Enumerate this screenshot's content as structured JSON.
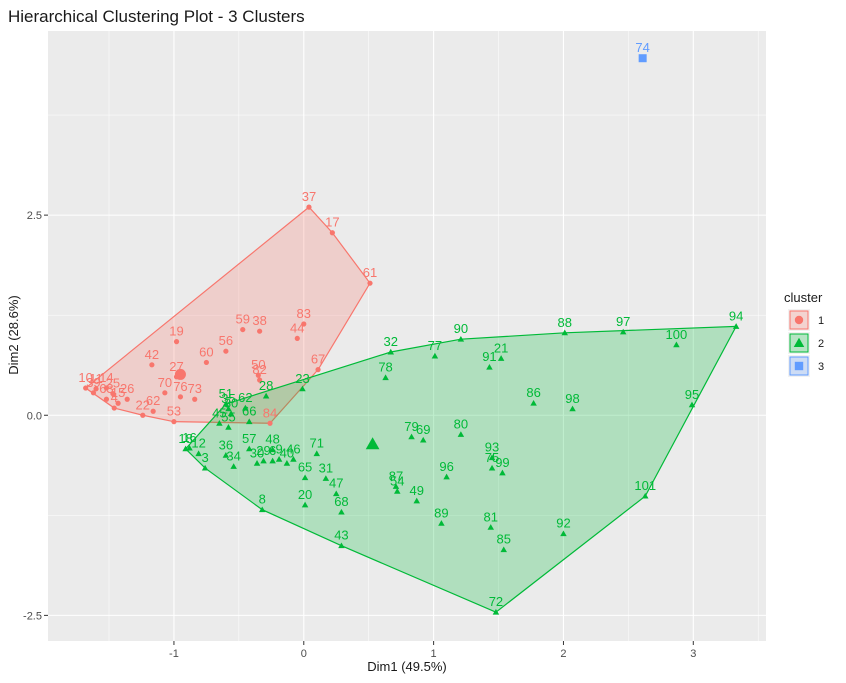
{
  "chart_data": {
    "type": "scatter",
    "title": "Hierarchical Clustering Plot - 3 Clusters",
    "xlabel": "Dim1 (49.5%)",
    "ylabel": "Dim2 (28.6%)",
    "xlim": [
      -1.97,
      3.56
    ],
    "ylim": [
      -2.82,
      4.8
    ],
    "xticks": [
      -1,
      0,
      1,
      2,
      3
    ],
    "xtick_labels": [
      "-1",
      "0",
      "1",
      "2",
      "3"
    ],
    "yticks": [
      -2.5,
      0.0,
      2.5
    ],
    "ytick_labels": [
      "-2.5",
      "0.0",
      "2.5"
    ],
    "grid": true,
    "legend_position": "right",
    "legend_title": "cluster",
    "series": [
      {
        "name": "1",
        "color": "#F8766D",
        "shape": "circle",
        "hull": true,
        "centroid": {
          "x": -0.95,
          "y": 0.51
        },
        "points": [
          {
            "label": "37",
            "x": 0.04,
            "y": 2.6
          },
          {
            "label": "17",
            "x": 0.22,
            "y": 2.28
          },
          {
            "label": "61",
            "x": 0.51,
            "y": 1.65
          },
          {
            "label": "83",
            "x": 0.0,
            "y": 1.14
          },
          {
            "label": "44",
            "x": -0.05,
            "y": 0.96
          },
          {
            "label": "59",
            "x": -0.47,
            "y": 1.07
          },
          {
            "label": "38",
            "x": -0.34,
            "y": 1.05
          },
          {
            "label": "19",
            "x": -0.98,
            "y": 0.92
          },
          {
            "label": "56",
            "x": -0.6,
            "y": 0.8
          },
          {
            "label": "60",
            "x": -0.75,
            "y": 0.66
          },
          {
            "label": "42",
            "x": -1.17,
            "y": 0.63
          },
          {
            "label": "50",
            "x": -0.35,
            "y": 0.5
          },
          {
            "label": "67",
            "x": 0.11,
            "y": 0.57
          },
          {
            "label": "27",
            "x": -0.98,
            "y": 0.48
          },
          {
            "label": "82",
            "x": -0.34,
            "y": 0.44
          },
          {
            "label": "70",
            "x": -1.07,
            "y": 0.28
          },
          {
            "label": "76",
            "x": -0.95,
            "y": 0.23
          },
          {
            "label": "73",
            "x": -0.84,
            "y": 0.2
          },
          {
            "label": "26",
            "x": -1.36,
            "y": 0.2
          },
          {
            "label": "62",
            "x": -1.16,
            "y": 0.05
          },
          {
            "label": "22",
            "x": -1.24,
            "y": 0.0
          },
          {
            "label": "53",
            "x": -1.0,
            "y": -0.08
          },
          {
            "label": "84",
            "x": -0.26,
            "y": -0.1
          },
          {
            "label": "10",
            "x": -1.68,
            "y": 0.34
          },
          {
            "label": "11",
            "x": -1.6,
            "y": 0.33
          },
          {
            "label": "14",
            "x": -1.52,
            "y": 0.34
          },
          {
            "label": "39",
            "x": -1.62,
            "y": 0.28
          },
          {
            "label": "25",
            "x": -1.47,
            "y": 0.27
          },
          {
            "label": "63",
            "x": -1.52,
            "y": 0.2
          },
          {
            "label": "15",
            "x": -1.43,
            "y": 0.15
          },
          {
            "label": "4",
            "x": -1.46,
            "y": 0.09
          }
        ]
      },
      {
        "name": "2",
        "color": "#00BA38",
        "shape": "triangle",
        "hull": true,
        "centroid": {
          "x": 0.53,
          "y": -0.36
        },
        "points": [
          {
            "label": "94",
            "x": 3.33,
            "y": 1.11
          },
          {
            "label": "97",
            "x": 2.46,
            "y": 1.04
          },
          {
            "label": "88",
            "x": 2.01,
            "y": 1.03
          },
          {
            "label": "100",
            "x": 2.87,
            "y": 0.88
          },
          {
            "label": "90",
            "x": 1.21,
            "y": 0.95
          },
          {
            "label": "32",
            "x": 0.67,
            "y": 0.79
          },
          {
            "label": "77",
            "x": 1.01,
            "y": 0.74
          },
          {
            "label": "21",
            "x": 1.52,
            "y": 0.71
          },
          {
            "label": "91",
            "x": 1.43,
            "y": 0.6
          },
          {
            "label": "78",
            "x": 0.63,
            "y": 0.47
          },
          {
            "label": "86",
            "x": 1.77,
            "y": 0.15
          },
          {
            "label": "98",
            "x": 2.07,
            "y": 0.08
          },
          {
            "label": "95",
            "x": 2.99,
            "y": 0.13
          },
          {
            "label": "23",
            "x": -0.01,
            "y": 0.33
          },
          {
            "label": "28",
            "x": -0.29,
            "y": 0.24
          },
          {
            "label": "62",
            "x": -0.45,
            "y": 0.09
          },
          {
            "label": "51",
            "x": -0.6,
            "y": 0.14
          },
          {
            "label": "35",
            "x": -0.58,
            "y": 0.08
          },
          {
            "label": "30",
            "x": -0.56,
            "y": 0.02
          },
          {
            "label": "66",
            "x": -0.42,
            "y": -0.08
          },
          {
            "label": "45",
            "x": -0.65,
            "y": -0.1
          },
          {
            "label": "55",
            "x": -0.58,
            "y": -0.15
          },
          {
            "label": "79",
            "x": 0.83,
            "y": -0.27
          },
          {
            "label": "69",
            "x": 0.92,
            "y": -0.31
          },
          {
            "label": "80",
            "x": 1.21,
            "y": -0.24
          },
          {
            "label": "18",
            "x": -0.91,
            "y": -0.42
          },
          {
            "label": "16",
            "x": -0.88,
            "y": -0.41
          },
          {
            "label": "12",
            "x": -0.81,
            "y": -0.48
          },
          {
            "label": "3",
            "x": -0.76,
            "y": -0.66
          },
          {
            "label": "36",
            "x": -0.6,
            "y": -0.5
          },
          {
            "label": "57",
            "x": -0.42,
            "y": -0.42
          },
          {
            "label": "48",
            "x": -0.24,
            "y": -0.43
          },
          {
            "label": "34",
            "x": -0.54,
            "y": -0.64
          },
          {
            "label": "30",
            "x": -0.36,
            "y": -0.6
          },
          {
            "label": "29",
            "x": -0.31,
            "y": -0.57
          },
          {
            "label": "46",
            "x": -0.08,
            "y": -0.55
          },
          {
            "label": "40",
            "x": -0.13,
            "y": -0.6
          },
          {
            "label": "9",
            "x": -0.19,
            "y": -0.55
          },
          {
            "label": "6",
            "x": -0.24,
            "y": -0.57
          },
          {
            "label": "71",
            "x": 0.1,
            "y": -0.48
          },
          {
            "label": "65",
            "x": 0.01,
            "y": -0.78
          },
          {
            "label": "31",
            "x": 0.17,
            "y": -0.79
          },
          {
            "label": "47",
            "x": 0.25,
            "y": -0.98
          },
          {
            "label": "93",
            "x": 1.45,
            "y": -0.53
          },
          {
            "label": "75",
            "x": 1.45,
            "y": -0.66
          },
          {
            "label": "99",
            "x": 1.53,
            "y": -0.72
          },
          {
            "label": "96",
            "x": 1.1,
            "y": -0.77
          },
          {
            "label": "87",
            "x": 0.71,
            "y": -0.89
          },
          {
            "label": "54",
            "x": 0.72,
            "y": -0.95
          },
          {
            "label": "49",
            "x": 0.87,
            "y": -1.07
          },
          {
            "label": "20",
            "x": 0.01,
            "y": -1.12
          },
          {
            "label": "68",
            "x": 0.29,
            "y": -1.21
          },
          {
            "label": "8",
            "x": -0.32,
            "y": -1.18
          },
          {
            "label": "89",
            "x": 1.06,
            "y": -1.35
          },
          {
            "label": "81",
            "x": 1.44,
            "y": -1.4
          },
          {
            "label": "92",
            "x": 2.0,
            "y": -1.48
          },
          {
            "label": "85",
            "x": 1.54,
            "y": -1.68
          },
          {
            "label": "43",
            "x": 0.29,
            "y": -1.63
          },
          {
            "label": "101",
            "x": 2.63,
            "y": -1.01
          },
          {
            "label": "72",
            "x": 1.48,
            "y": -2.46
          }
        ]
      },
      {
        "name": "3",
        "color": "#619CFF",
        "shape": "square",
        "hull": false,
        "points": [
          {
            "label": "74",
            "x": 2.61,
            "y": 4.46
          }
        ]
      }
    ]
  }
}
